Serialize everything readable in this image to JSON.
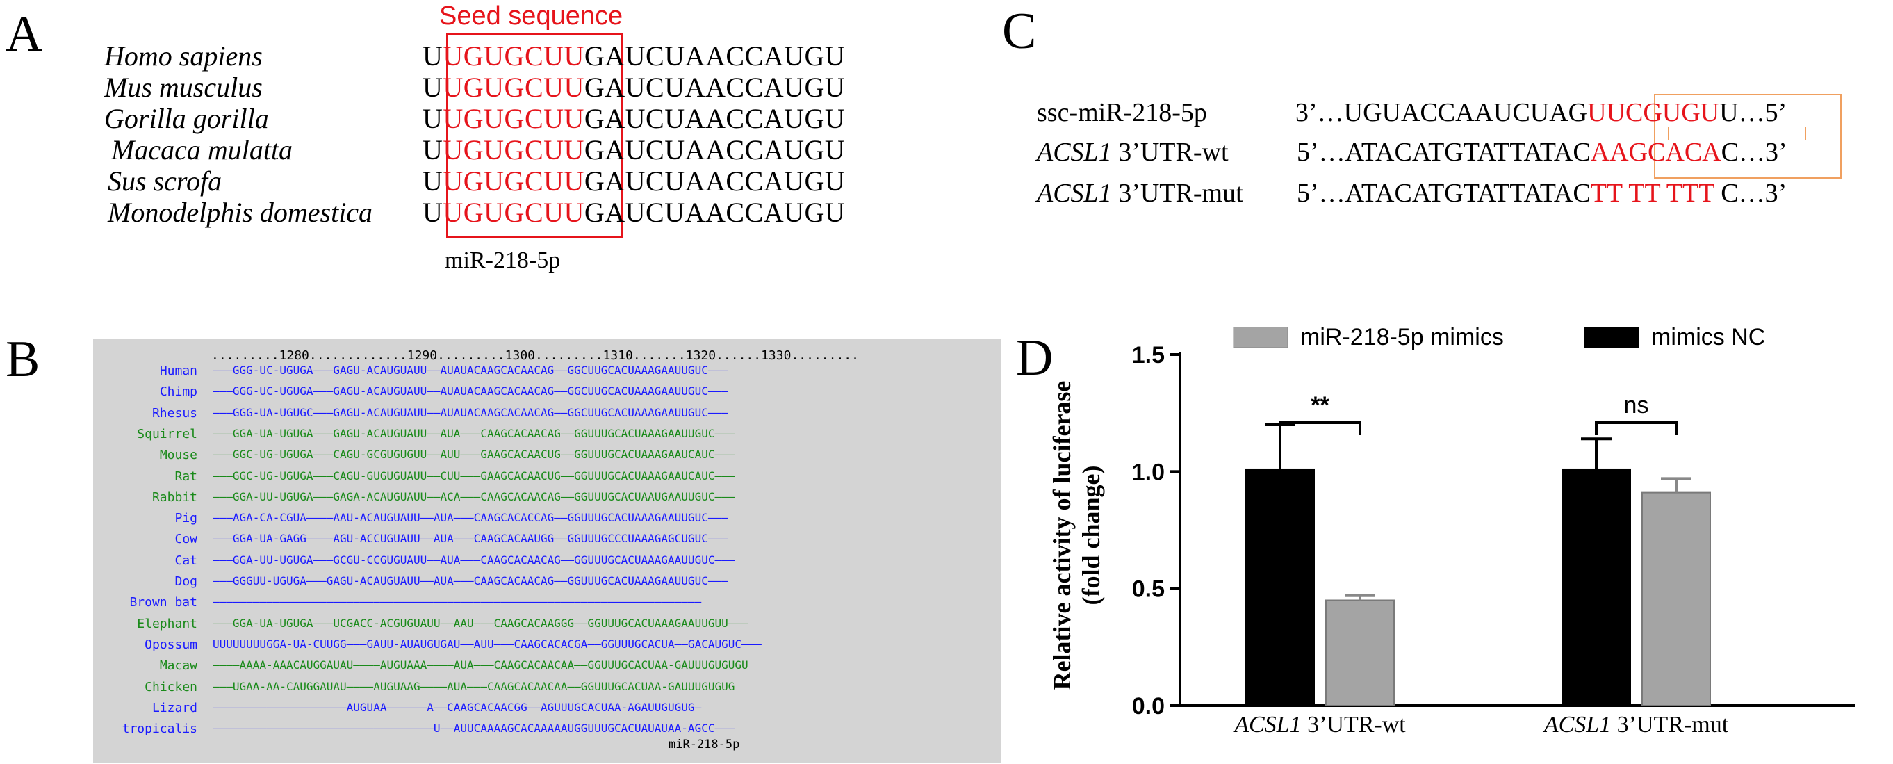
{
  "panel_letters": {
    "a": "A",
    "b": "B",
    "c": "C",
    "d": "D"
  },
  "panel_a": {
    "title": "Seed sequence",
    "caption": "miR-218-5p",
    "rows": [
      {
        "species": "Homo sapiens",
        "pre": "U",
        "seed": "UGUGCUU",
        "post": "GAUCUAACCAUGU"
      },
      {
        "species": "Mus musculus",
        "pre": "U",
        "seed": "UGUGCUU",
        "post": "GAUCUAACCAUGU"
      },
      {
        "species": "Gorilla gorilla",
        "pre": "U",
        "seed": "UGUGCUU",
        "post": "GAUCUAACCAUGU"
      },
      {
        "species": "Macaca mulatta",
        "pre": "U",
        "seed": "UGUGCUU",
        "post": "GAUCUAACCAUGU"
      },
      {
        "species": "Sus scrofa",
        "pre": "U",
        "seed": "UGUGCUU",
        "post": "GAUCUAACCAUGU"
      },
      {
        "species": "Monodelphis domestica",
        "pre": "U",
        "seed": "UGUGCUU",
        "post": "GAUCUAACCAUGU"
      }
    ]
  },
  "panel_b": {
    "ruler": ".........1280.............1290.........1300.........1310.......1320......1330.........",
    "caption": "miR-218-5p",
    "rows": [
      {
        "species": "Human",
        "color": "#1a1aff",
        "seq": "———GGG-UC-UGUGA———GAGU-ACAUGUAUU——AUAUACAAGCACAACAG——GGCUUGCACUAAAGAAUUGUC———"
      },
      {
        "species": "Chimp",
        "color": "#1a1aff",
        "seq": "———GGG-UC-UGUGA———GAGU-ACAUGUAUU——AUAUACAAGCACAACAG——GGCUUGCACUAAAGAAUUGUC———"
      },
      {
        "species": "Rhesus",
        "color": "#1a1aff",
        "seq": "———GGG-UA-UGUGC———GAGU-ACAUGUAUU——AUAUACAAGCACAACAG——GGCUUGCACUAAAGAAUUGUC———"
      },
      {
        "species": "Squirrel",
        "color": "#1a8a1a",
        "seq": "———GGA-UA-UGUGA———GAGU-ACAUGUAUU——AUA———CAAGCACAACAG——GGUUUGCACUAAAGAAUUGUC———"
      },
      {
        "species": "Mouse",
        "color": "#1a8a1a",
        "seq": "———GGC-UG-UGUGA———CAGU-GCGUGUGUU——AUU———GAAGCACAACUG——GGUUUGCACUAAAGAAUCAUC———"
      },
      {
        "species": "Rat",
        "color": "#1a8a1a",
        "seq": "———GGC-UG-UGUGA———CAGU-GUGUGUAUU——CUU———GAAGCACAACUG——GGUUUGCACUAAAGAAUCAUC———"
      },
      {
        "species": "Rabbit",
        "color": "#1a8a1a",
        "seq": "———GGA-UU-UGUGA———GAGA-ACAUGUAUU——ACA———CAAGCACAACAG——GGUUUGCACUAAUGAAUUGUC———"
      },
      {
        "species": "Pig",
        "color": "#1a1aff",
        "seq": "———AGA-CA-CGUA————AAU-ACAUGUAUU——AUA———CAAGCACACCAG——GGUUUGCACUAAAGAAUUGUC———"
      },
      {
        "species": "Cow",
        "color": "#1a1aff",
        "seq": "———GGA-UA-GAGG————AGU-ACCUGUAUU——AUA———CAAGCACAAUGG——GGUUUGCCCUAAAGAGCUGUC———"
      },
      {
        "species": "Cat",
        "color": "#1a1aff",
        "seq": "———GGA-UU-UGUGA———GCGU-CCGUGUAUU——AUA———CAAGCACAACAG——GGUUUGCACUAAAGAAUUGUC———"
      },
      {
        "species": "Dog",
        "color": "#1a1aff",
        "seq": "———GGGUU-UGUGA———GAGU-ACAUGUAUU——AUA———CAAGCACAACAG——GGUUUGCACUAAAGAAUUGUC———"
      },
      {
        "species": "Brown bat",
        "color": "#1a1aff",
        "seq": "—————————————————————————————————————————————————————————————————————————"
      },
      {
        "species": "Elephant",
        "color": "#1a8a1a",
        "seq": "———GGA-UA-UGUGA———UCGACC-ACGUGUAUU——AAU———CAAGCACAAGGG——GGUUUGCACUAAAGAAUUGUU———"
      },
      {
        "species": "Opossum",
        "color": "#1a1aff",
        "seq": "UUUUUUUUGGA-UA-CUUGG———GAUU-AUAUGUGAU——AUU———CAAGCACACGA——GGUUUGCACUA——GACAUGUC———"
      },
      {
        "species": "Macaw",
        "color": "#1a8a1a",
        "seq": "————AAAA-AAACAUGGAUAU————AUGUAAA————AUA———CAAGCACAACAA——GGUUUGCACUAA-GAUUUGUGUGU"
      },
      {
        "species": "Chicken",
        "color": "#1a8a1a",
        "seq": "———UGAA-AA-CAUGGAUAU————AUGUAAG————AUA———CAAGCACAACAA——GGUUUGCACUAA-GAUUUGUGUG"
      },
      {
        "species": "Lizard",
        "color": "#1a1aff",
        "seq": "————————————————————AUGUAA——————A——CAAGCACAACGG——AGUUUGCACUAA-AGAUUGUGUG—"
      },
      {
        "species": "tropicalis",
        "color": "#1a1aff",
        "seq": "—————————————————————————————————U——AUUCAAAAGCACAAAAAUGGUUUGCACUAUAUAA-AGCC———"
      }
    ]
  },
  "panel_c": {
    "rows": [
      {
        "label_italic": "",
        "label": "ssc-miR-218-5p",
        "pre": "3’…UGUACCAAUCUAG",
        "red": "UUCGUGU",
        "post": "U…5’"
      },
      {
        "label_italic": "ACSL1",
        "label": " 3’UTR-wt",
        "pre": "5’…ATACATGTATTATAC",
        "red": "AAGCACA",
        "post": "C…3’"
      },
      {
        "label_italic": "ACSL1",
        "label": " 3’UTR-mut",
        "pre": "5’…ATACATGTATTATAC",
        "red": "TT TT TTT",
        "post": " C…3’"
      }
    ]
  },
  "chart_data": {
    "type": "bar",
    "ylabel": "Relative activity of luciferase (fold change)",
    "ylim": [
      0,
      1.5
    ],
    "yticks": [
      "0.0",
      "0.5",
      "1.0",
      "1.5"
    ],
    "categories": [
      {
        "italic": "ACSL1",
        "rest": " 3’UTR-wt"
      },
      {
        "italic": "ACSL1",
        "rest": " 3’UTR-mut"
      }
    ],
    "series": [
      {
        "name": "mimics NC",
        "color": "#000000",
        "values": [
          1.01,
          1.01
        ],
        "errors": [
          0.19,
          0.13
        ]
      },
      {
        "name": "miR-218-5p mimics",
        "color": "#a4a4a4",
        "values": [
          0.45,
          0.91
        ],
        "errors": [
          0.02,
          0.06
        ]
      }
    ],
    "legend_order": [
      "miR-218-5p mimics",
      "mimics NC"
    ],
    "significance": [
      "**",
      "ns"
    ]
  }
}
